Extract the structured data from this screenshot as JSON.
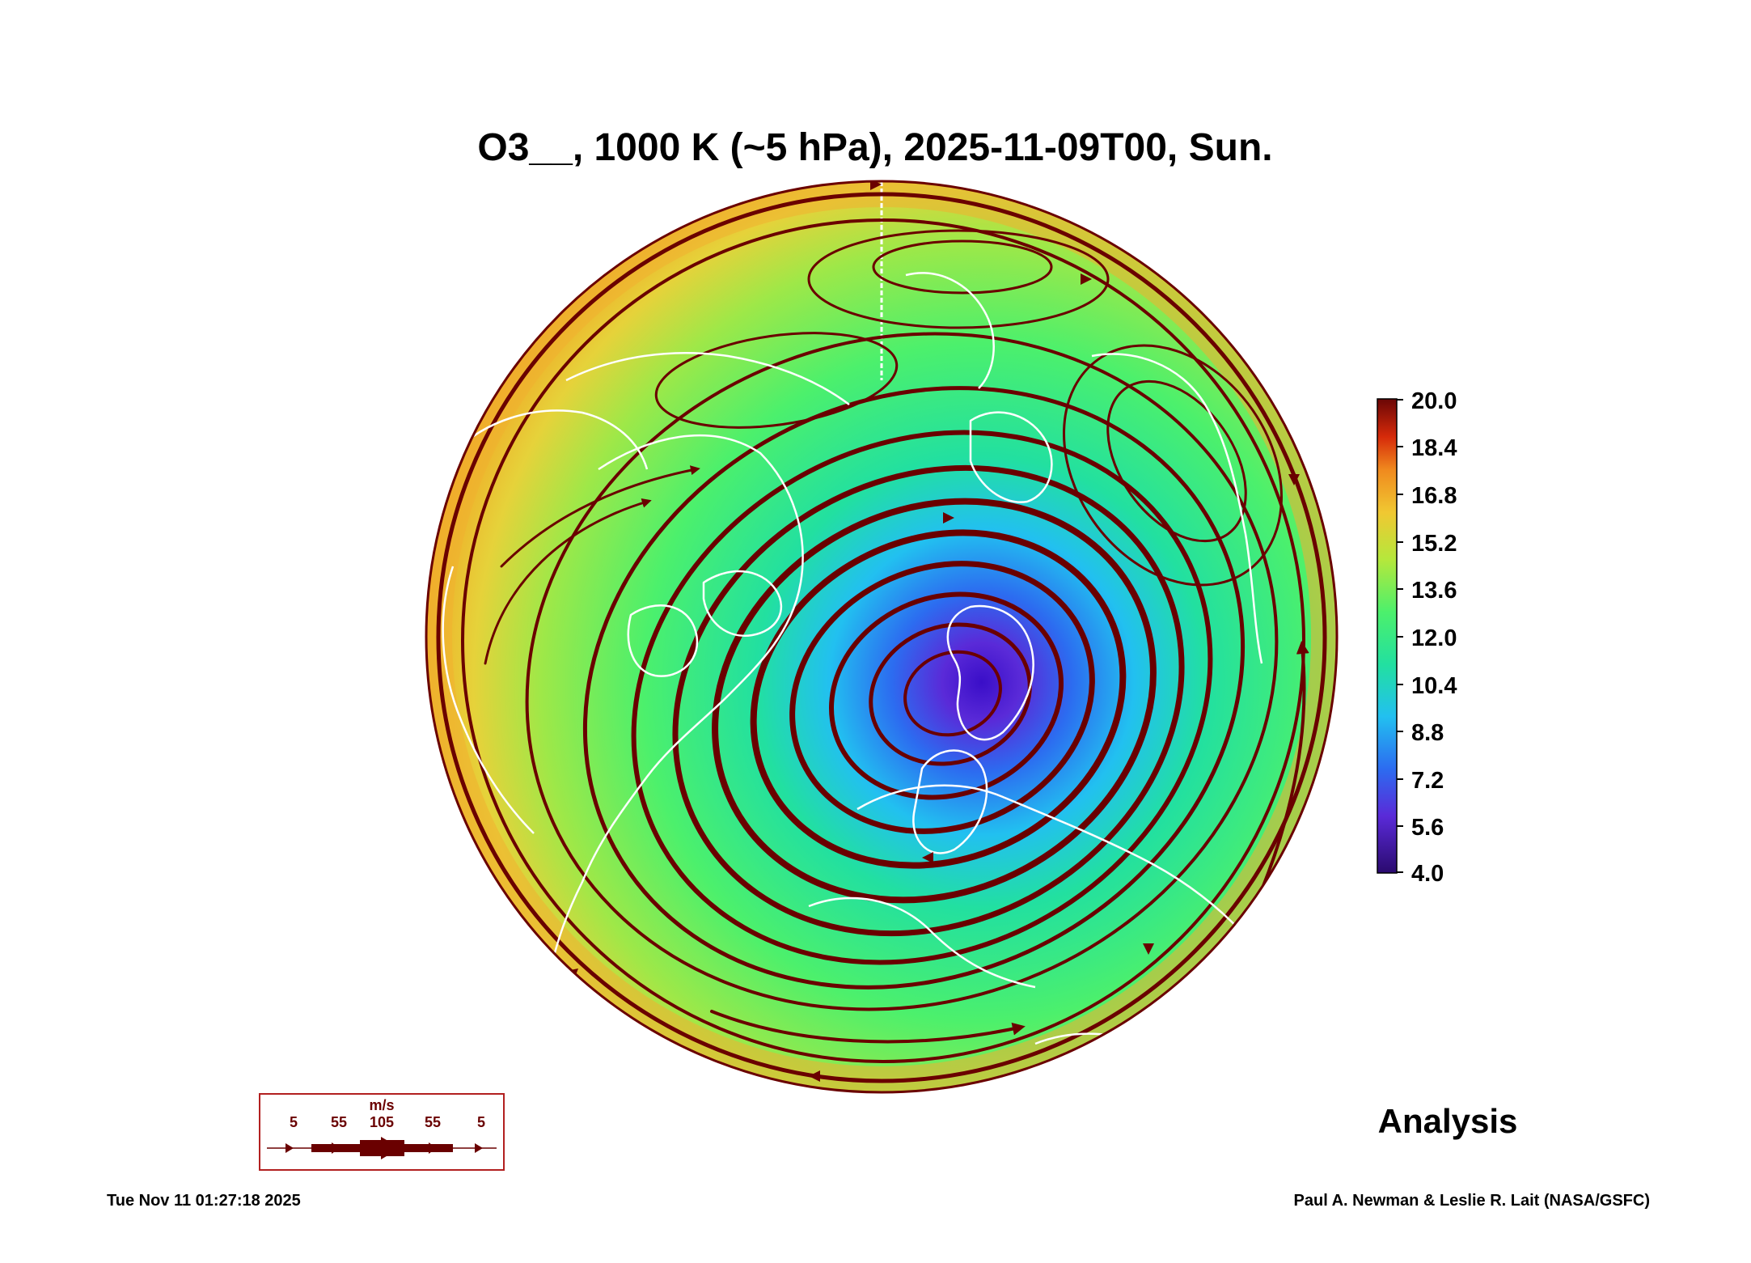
{
  "title": "O3__, 1000 K (~5 hPa), 2025-11-09T00, Sun.",
  "colorbar": {
    "ticks": [
      "20.0",
      "18.4",
      "16.8",
      "15.2",
      "13.6",
      "12.0",
      "10.4",
      "8.8",
      "7.2",
      "5.6",
      "4.0"
    ],
    "min": 4.0,
    "max": 20.0,
    "colors": [
      "#2a0a6e",
      "#5a2ad8",
      "#2c6cf0",
      "#22c0f0",
      "#22e0a0",
      "#4cf06c",
      "#b4e83c",
      "#f0c832",
      "#f08a1e",
      "#d62a0a",
      "#6a0606"
    ]
  },
  "wind_legend": {
    "unit": "m/s",
    "speeds": [
      "5",
      "55",
      "105",
      "55",
      "5"
    ]
  },
  "analysis_label": "Analysis",
  "footer": {
    "timestamp": "Tue Nov 11 01:27:18 2025",
    "credit": "Paul A. Newman & Leslie R. Lait (NASA/GSFC)"
  },
  "map": {
    "projection": "north polar stereographic",
    "field_range": "ozone low (~4–6) near pole over Greenland/Arctic, rising to ~15–17 at edge",
    "coastline_color": "#ffffff",
    "streamline_color": "#6a0000"
  }
}
